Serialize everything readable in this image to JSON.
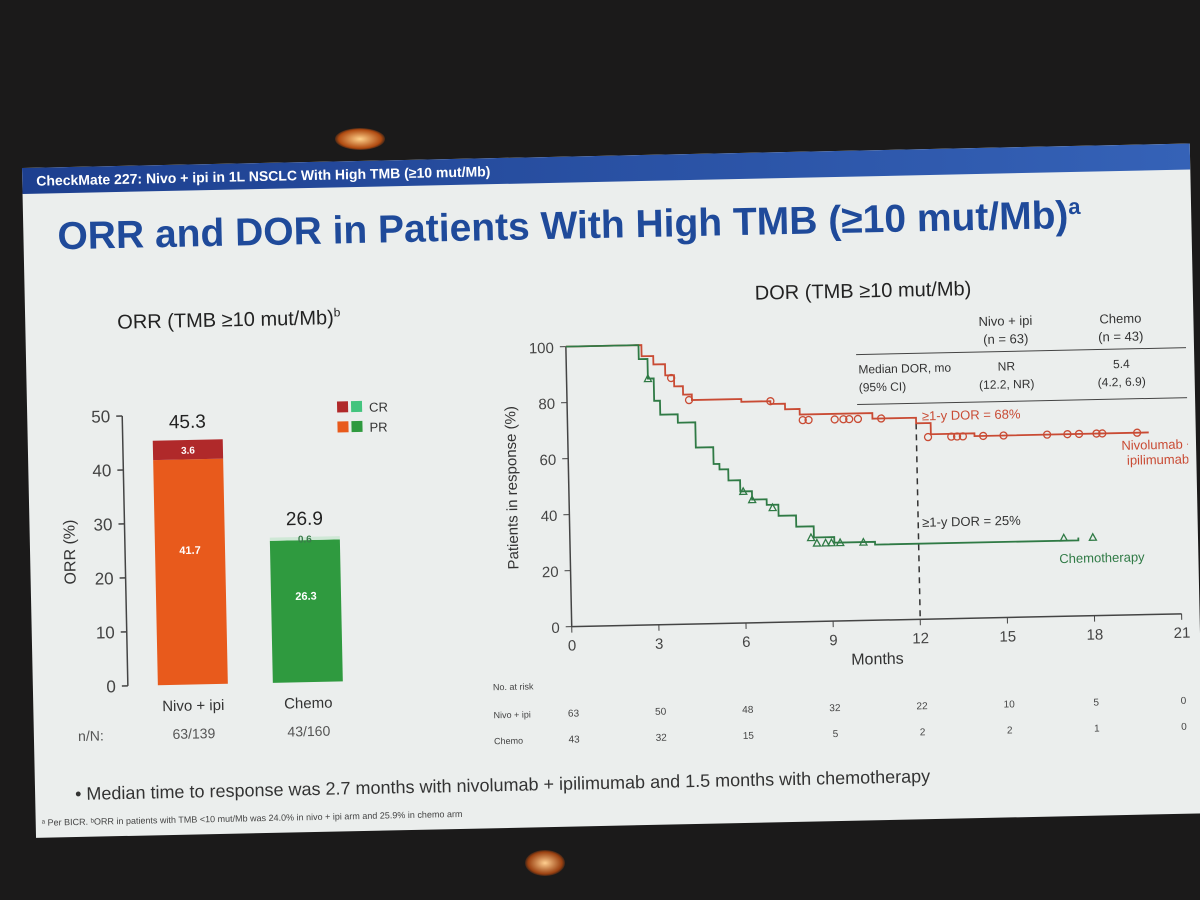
{
  "colors": {
    "nivo_pr": "#e85a1c",
    "nivo_cr": "#b0292a",
    "chemo_pr": "#2f9a3f",
    "chemo_cr": "#43c47e",
    "nivo_line": "#c94b34",
    "chemo_line": "#2f7a45",
    "title_blue": "#1f4a9a"
  },
  "slide": {
    "banner": "CheckMate 227: Nivo + ipi in 1L NSCLC With High TMB (≥10 mut/Mb)",
    "title": "ORR and DOR in Patients With High TMB (≥10 mut/Mb)",
    "title_sup": "a",
    "bullet": "•  Median time to response was 2.7 months with nivolumab + ipilimumab and 1.5 months with chemotherapy",
    "small_note": "ᵃ Per BICR. ᵇORR in patients with TMB <10 mut/Mb was 24.0% in nivo + ipi arm and 25.9% in chemo arm"
  },
  "orr": {
    "subtitle": "ORR (TMB ≥10 mut/Mb)",
    "subtitle_sup": "b"
  },
  "dor": {
    "subtitle": "DOR (TMB ≥10 mut/Mb)"
  },
  "chart_data": [
    {
      "type": "bar",
      "title": "ORR (TMB ≥10 mut/Mb)",
      "ylabel": "ORR (%)",
      "ylim": [
        0,
        50
      ],
      "yticks": [
        0,
        10,
        20,
        30,
        40,
        50
      ],
      "categories": [
        "Nivo + ipi",
        "Chemo"
      ],
      "totals": [
        "45.3",
        "26.9"
      ],
      "series": [
        {
          "name": "PR",
          "values": [
            41.7,
            26.3
          ],
          "labels": [
            "41.7",
            "26.3"
          ]
        },
        {
          "name": "CR",
          "values": [
            3.6,
            0.6
          ],
          "labels": [
            "3.6",
            "0.6"
          ]
        }
      ],
      "legend": [
        "CR",
        "PR"
      ],
      "n_label": "n/N:",
      "n_values": [
        "63/139",
        "43/160"
      ]
    },
    {
      "type": "line",
      "title": "DOR (TMB ≥10 mut/Mb)",
      "xlabel": "Months",
      "ylabel": "Patients in response (%)",
      "xlim": [
        0,
        21
      ],
      "ylim": [
        0,
        100
      ],
      "xticks": [
        0,
        3,
        6,
        9,
        12,
        15,
        18,
        21
      ],
      "yticks": [
        0,
        20,
        40,
        60,
        80,
        100
      ],
      "series": [
        {
          "name": "Nivolumab + ipilimumab",
          "label_lines": [
            "Nivolumab +",
            "ipilimumab"
          ],
          "points": [
            [
              0,
              100
            ],
            [
              2.3,
              100
            ],
            [
              2.6,
              96
            ],
            [
              3,
              93
            ],
            [
              3.4,
              89
            ],
            [
              3.7,
              85
            ],
            [
              4,
              82
            ],
            [
              4.3,
              80
            ],
            [
              5.5,
              80
            ],
            [
              6,
              79
            ],
            [
              7,
              78
            ],
            [
              7.5,
              76
            ],
            [
              8,
              74
            ],
            [
              10.5,
              72
            ],
            [
              12,
              70
            ],
            [
              12.5,
              66
            ],
            [
              14,
              65
            ],
            [
              20,
              65
            ]
          ],
          "censor": [
            [
              3.6,
              88
            ],
            [
              4.2,
              80
            ],
            [
              7,
              79
            ],
            [
              8.1,
              72
            ],
            [
              8.3,
              72
            ],
            [
              9.2,
              72
            ],
            [
              9.5,
              72
            ],
            [
              9.7,
              72
            ],
            [
              10,
              72
            ],
            [
              10.8,
              72
            ],
            [
              12.4,
              65
            ],
            [
              13.2,
              65
            ],
            [
              13.4,
              65
            ],
            [
              13.6,
              65
            ],
            [
              14.3,
              65
            ],
            [
              15,
              65
            ],
            [
              16.5,
              65
            ],
            [
              17.2,
              65
            ],
            [
              17.6,
              65
            ],
            [
              18.2,
              65
            ],
            [
              18.4,
              65
            ],
            [
              19.6,
              65
            ]
          ],
          "annotation": "≥1-y DOR = 68%"
        },
        {
          "name": "Chemotherapy",
          "label_lines": [
            "Chemotherapy"
          ],
          "points": [
            [
              0,
              100
            ],
            [
              2.3,
              100
            ],
            [
              2.5,
              95
            ],
            [
              2.8,
              88
            ],
            [
              3,
              80
            ],
            [
              3.2,
              75
            ],
            [
              3.8,
              72
            ],
            [
              4.4,
              63
            ],
            [
              5,
              57
            ],
            [
              5.2,
              55
            ],
            [
              5.5,
              51
            ],
            [
              5.9,
              47
            ],
            [
              6.3,
              44
            ],
            [
              6.8,
              42
            ],
            [
              7.2,
              38
            ],
            [
              7.8,
              34
            ],
            [
              8.4,
              30
            ],
            [
              9.1,
              28
            ],
            [
              10.5,
              27
            ],
            [
              17.5,
              28
            ]
          ],
          "censor": [
            [
              2.8,
              88
            ],
            [
              6,
              47
            ],
            [
              6.3,
              44
            ],
            [
              7,
              41
            ],
            [
              8.3,
              30
            ],
            [
              8.5,
              28
            ],
            [
              8.8,
              28
            ],
            [
              9,
              28
            ],
            [
              9.3,
              28
            ],
            [
              10.1,
              28
            ],
            [
              17,
              28
            ],
            [
              18,
              28
            ]
          ],
          "annotation": "≥1-y DOR = 25%"
        }
      ],
      "reference_x": 12,
      "table": {
        "headers": [
          "",
          "Nivo + ipi\n(n = 63)",
          "Chemo\n(n = 43)"
        ],
        "row_label": [
          "Median DOR, mo",
          "(95% CI)"
        ],
        "nivo": [
          "NR",
          "(12.2, NR)"
        ],
        "chemo": [
          "5.4",
          "(4.2, 6.9)"
        ]
      },
      "at_risk": {
        "label": "No. at risk",
        "rows": [
          {
            "name": "Nivo + ipi",
            "values": [
              "63",
              "50",
              "48",
              "32",
              "22",
              "10",
              "5",
              "0"
            ]
          },
          {
            "name": "Chemo",
            "values": [
              "43",
              "32",
              "15",
              "5",
              "2",
              "2",
              "1",
              "0"
            ]
          }
        ]
      }
    }
  ]
}
